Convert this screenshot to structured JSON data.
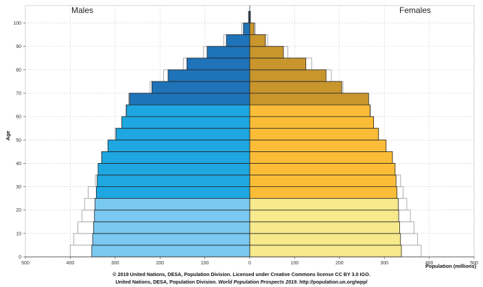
{
  "chart_data": {
    "type": "bar",
    "orientation": "horizontal-pyramid",
    "title_left": "Males",
    "title_right": "Females",
    "ylabel": "Age",
    "xlabel": "Population (millions)",
    "xlim": [
      -500,
      500
    ],
    "x_ticks": [
      "500",
      "400",
      "300",
      "200",
      "100",
      "0",
      "100",
      "200",
      "300",
      "400",
      "500"
    ],
    "y_ticks": [
      "0",
      "10",
      "20",
      "30",
      "40",
      "50",
      "60",
      "70",
      "80",
      "90",
      "100"
    ],
    "age_groups": [
      "0-4",
      "5-9",
      "10-14",
      "15-19",
      "20-24",
      "25-29",
      "30-34",
      "35-39",
      "40-44",
      "45-49",
      "50-54",
      "55-59",
      "60-64",
      "65-69",
      "70-74",
      "75-79",
      "80-84",
      "85-89",
      "90-94",
      "95-99",
      "100+"
    ],
    "series": [
      {
        "name": "Males",
        "values": [
          352,
          350,
          348,
          346,
          345,
          342,
          340,
          338,
          330,
          316,
          298,
          285,
          275,
          268,
          218,
          182,
          140,
          95,
          52,
          14,
          2
        ]
      },
      {
        "name": "Females",
        "values": [
          338,
          336,
          334,
          332,
          331,
          328,
          326,
          324,
          318,
          304,
          287,
          276,
          268,
          265,
          205,
          170,
          125,
          75,
          35,
          10,
          1
        ]
      },
      {
        "name": "Males (outline)",
        "values": [
          400,
          392,
          383,
          374,
          368,
          360,
          344,
          336,
          330,
          316,
          300,
          285,
          276,
          270,
          222,
          192,
          148,
          103,
          58,
          18,
          3
        ]
      },
      {
        "name": "Females (outline)",
        "values": [
          382,
          374,
          366,
          358,
          350,
          342,
          336,
          322,
          318,
          303,
          287,
          276,
          269,
          264,
          208,
          182,
          138,
          85,
          40,
          13,
          2
        ]
      }
    ],
    "colors": {
      "males_young": "#7ac9f0",
      "males_working": "#1ea7e1",
      "males_old": "#1f73b8",
      "females_young": "#f7e98c",
      "females_working": "#fbbd37",
      "females_old": "#c9962e",
      "outline": "#aaaaaa",
      "bar_border": "#222222"
    }
  },
  "credits": {
    "line1": "© 2019 United Nations, DESA, Population Division. Licensed under Creative Commons license CC BY 3.0 IGO.",
    "line2_prefix": "United Nations, DESA, Population Division.",
    "line2_title": "World Population Prospects 2019",
    "line2_suffix": ". http://population.un.org/wpp/"
  }
}
